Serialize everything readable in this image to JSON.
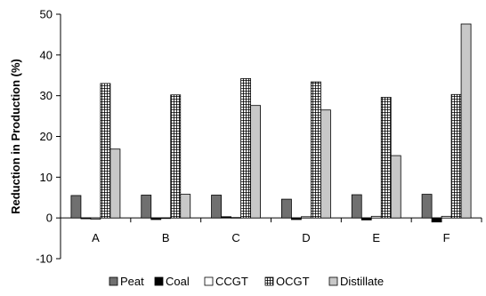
{
  "chart_data": {
    "type": "bar",
    "title": "",
    "xlabel": "",
    "ylabel": "Reduction in Production (%)",
    "ylim": [
      -10,
      50
    ],
    "yticks": [
      -10,
      0,
      10,
      20,
      30,
      40,
      50
    ],
    "grid": false,
    "legend_position": "bottom",
    "categories": [
      "A",
      "B",
      "C",
      "D",
      "E",
      "F"
    ],
    "series": [
      {
        "name": "Peat",
        "fill": "solid",
        "color": "#707070",
        "values": [
          5.5,
          5.6,
          5.6,
          4.6,
          5.7,
          5.8
        ]
      },
      {
        "name": "Coal",
        "fill": "solid",
        "color": "#000000",
        "values": [
          -0.2,
          -0.4,
          0.3,
          -0.4,
          -0.5,
          -1.0
        ]
      },
      {
        "name": "CCGT",
        "fill": "solid",
        "color": "#ffffff",
        "values": [
          -0.3,
          0.0,
          0.1,
          0.3,
          0.4,
          0.4
        ]
      },
      {
        "name": "OCGT",
        "fill": "grid",
        "color": "#ffffff",
        "values": [
          33.0,
          30.2,
          34.2,
          33.4,
          29.6,
          30.3
        ]
      },
      {
        "name": "Distillate",
        "fill": "solid",
        "color": "#c8c8c8",
        "values": [
          16.9,
          5.8,
          27.6,
          26.5,
          15.3,
          47.6
        ]
      }
    ]
  }
}
